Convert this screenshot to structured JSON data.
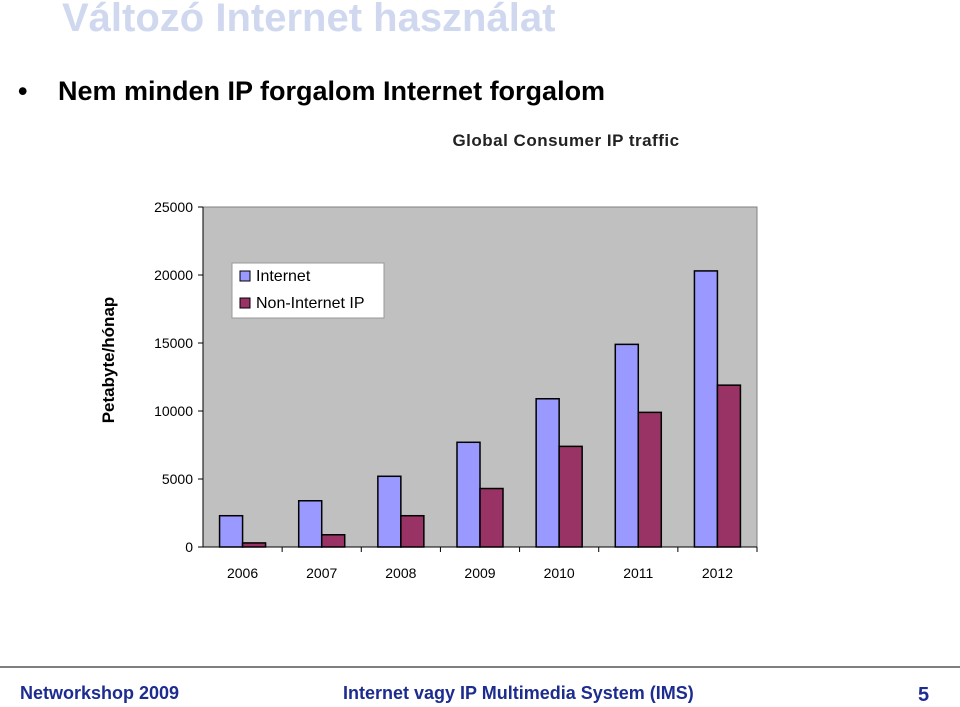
{
  "slide": {
    "title": "Változó Internet használat",
    "bullet": "Nem minden IP forgalom Internet forgalom"
  },
  "footer": {
    "left": "Networkshop 2009",
    "center": "Internet vagy IP Multimedia System (IMS)",
    "page_number": "5"
  },
  "chart_data": {
    "type": "bar",
    "title": "Global Consumer IP traffic",
    "ylabel": "Petabyte/hónap",
    "xlabel": "",
    "categories": [
      "2006",
      "2007",
      "2008",
      "2009",
      "2010",
      "2011",
      "2012"
    ],
    "series": [
      {
        "name": "Internet",
        "values": [
          2300,
          3400,
          5200,
          7700,
          10900,
          14900,
          20300
        ],
        "color": "#9999ff"
      },
      {
        "name": "Non-Internet IP",
        "values": [
          300,
          900,
          2300,
          4300,
          7400,
          9900,
          11900
        ],
        "color": "#993366"
      }
    ],
    "yticks": [
      "0",
      "5000",
      "10000",
      "15000",
      "20000",
      "25000"
    ],
    "ylim": [
      0,
      25000
    ],
    "grid": false,
    "legend_position": "top-left",
    "plot_background": "#c0c0c0"
  }
}
